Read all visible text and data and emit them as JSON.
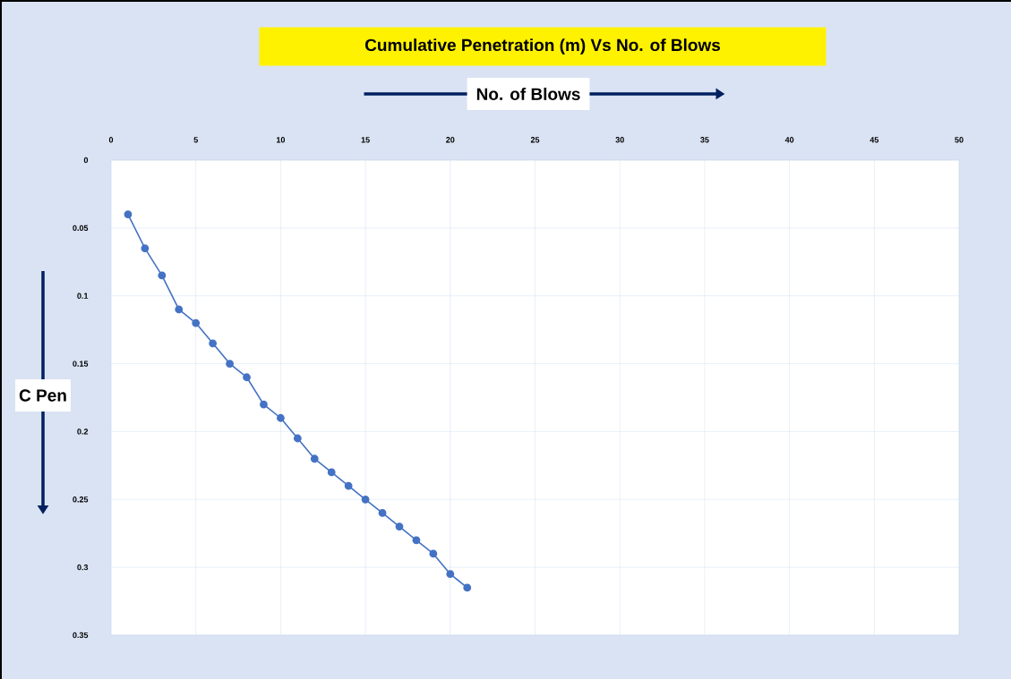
{
  "chart_data": {
    "type": "line",
    "title": "Cumulative Penetration (m) Vs No. of Blows",
    "xlabel": "No. of Blows",
    "ylabel": "C Pen",
    "x": [
      1,
      2,
      3,
      4,
      5,
      6,
      7,
      8,
      9,
      10,
      11,
      12,
      13,
      14,
      15,
      16,
      17,
      18,
      19,
      20,
      21
    ],
    "series": [
      {
        "color": "#4472c4",
        "values": [
          0.04,
          0.065,
          0.085,
          0.11,
          0.12,
          0.135,
          0.15,
          0.16,
          0.18,
          0.19,
          0.205,
          0.22,
          0.23,
          0.24,
          0.25,
          0.26,
          0.27,
          0.28,
          0.29,
          0.305,
          0.315
        ]
      }
    ],
    "xlim": [
      0,
      50
    ],
    "ylim": [
      0.35,
      0
    ],
    "xticks": [
      0,
      5,
      10,
      15,
      20,
      25,
      30,
      35,
      40,
      45,
      50
    ],
    "yticks": [
      0,
      0.05,
      0.1,
      0.15,
      0.2,
      0.25,
      0.3,
      0.35
    ],
    "grid": true,
    "marker": "circle",
    "line_style": "solid"
  }
}
